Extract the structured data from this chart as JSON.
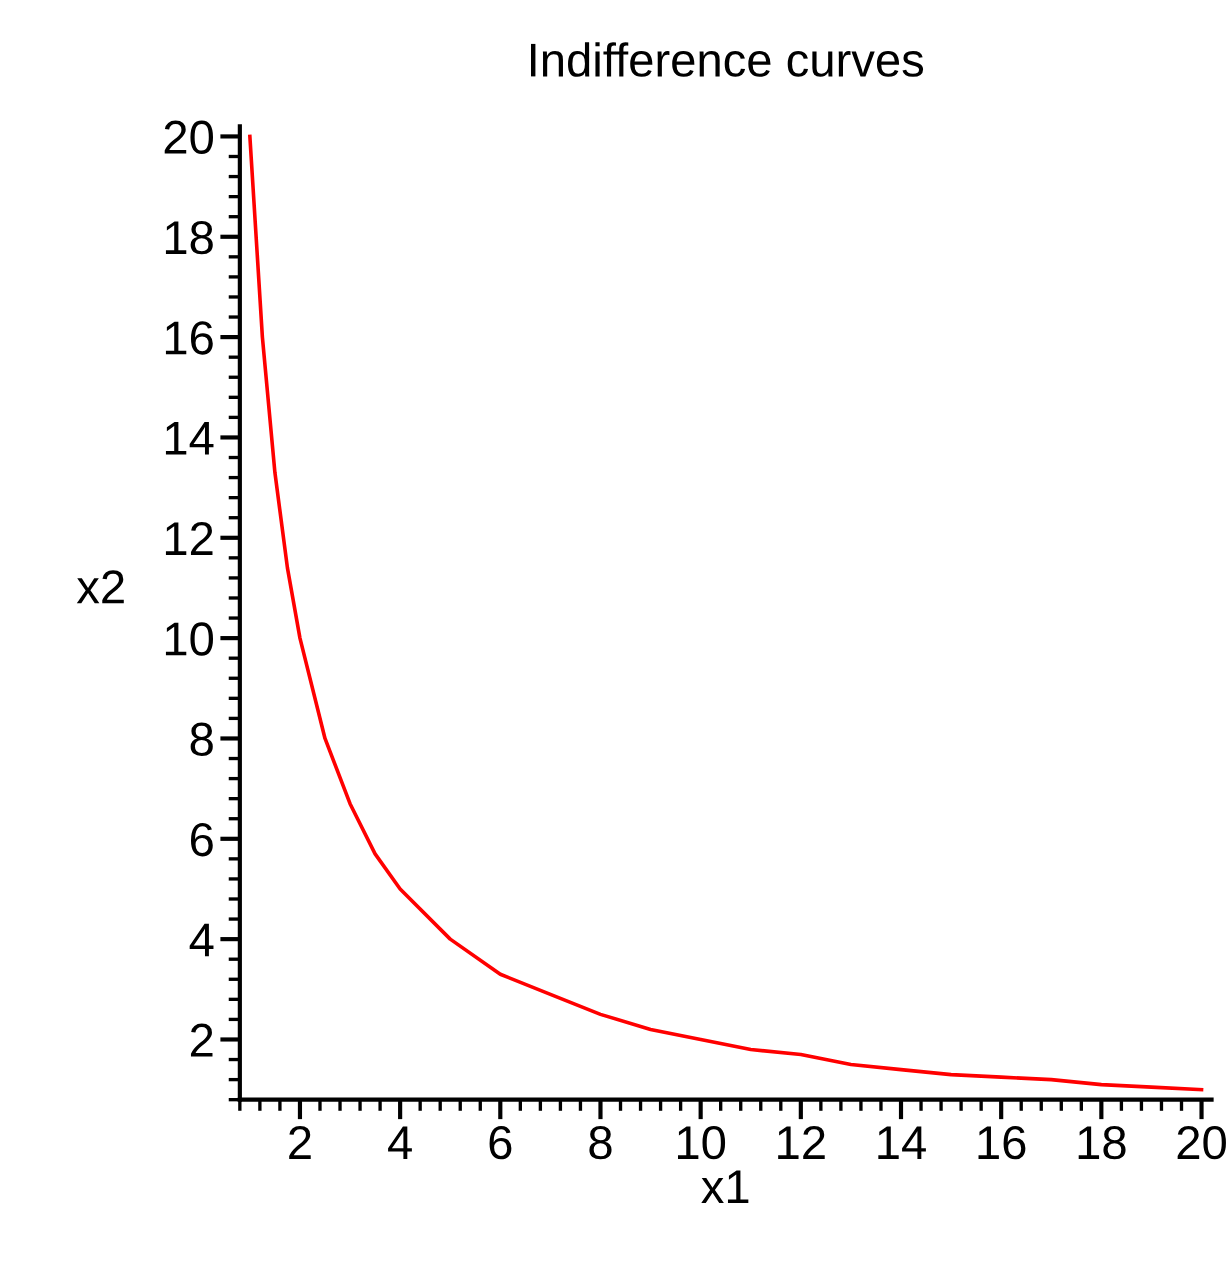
{
  "chart_data": {
    "type": "line",
    "title": "Indifference curves",
    "xlabel": "x1",
    "ylabel": "x2",
    "x": [
      1,
      1.25,
      1.5,
      1.75,
      2,
      2.5,
      3,
      3.5,
      4,
      5,
      6,
      7,
      8,
      9,
      10,
      11,
      12,
      13,
      14,
      15,
      16,
      17,
      18,
      19,
      20
    ],
    "series": [
      {
        "color": "#ff0000",
        "values": [
          20,
          16,
          13.3,
          11.4,
          10,
          8,
          6.7,
          5.7,
          5,
          4,
          3.3,
          2.9,
          2.5,
          2.2,
          2,
          1.8,
          1.7,
          1.5,
          1.4,
          1.3,
          1.25,
          1.2,
          1.1,
          1.05,
          1
        ]
      }
    ],
    "xlim": [
      0.8,
      20.2
    ],
    "ylim": [
      0.8,
      20.2
    ],
    "xticks": [
      2,
      4,
      6,
      8,
      10,
      12,
      14,
      16,
      18,
      20
    ],
    "yticks": [
      2,
      4,
      6,
      8,
      10,
      12,
      14,
      16,
      18,
      20
    ],
    "grid": false,
    "legend": false,
    "marker": "none",
    "line_style": "solid"
  }
}
